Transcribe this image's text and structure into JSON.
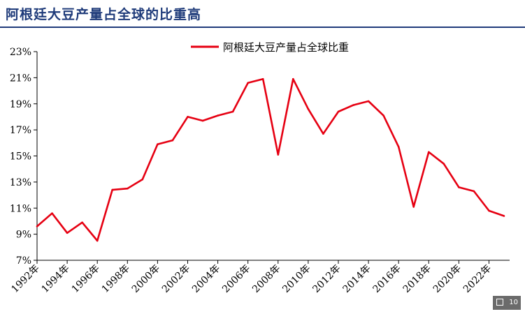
{
  "title": "阿根廷大豆产量占全球的比重高",
  "page_number": "10",
  "colors": {
    "line": "#e60012",
    "title": "#1f3b7a"
  },
  "chart_data": {
    "type": "line",
    "title": "",
    "xlabel": "",
    "ylabel": "",
    "legend_position": "top-center",
    "grid": false,
    "ylim": [
      7,
      23
    ],
    "ytick_labels": [
      "7%",
      "9%",
      "11%",
      "13%",
      "15%",
      "17%",
      "19%",
      "21%",
      "23%"
    ],
    "ytick_values": [
      7,
      9,
      11,
      13,
      15,
      17,
      19,
      21,
      23
    ],
    "x": [
      1992,
      1993,
      1994,
      1995,
      1996,
      1997,
      1998,
      1999,
      2000,
      2001,
      2002,
      2003,
      2004,
      2005,
      2006,
      2007,
      2008,
      2009,
      2010,
      2011,
      2012,
      2013,
      2014,
      2015,
      2016,
      2017,
      2018,
      2019,
      2020,
      2021,
      2022,
      2023
    ],
    "xtick_labels": [
      "1992年",
      "1994年",
      "1996年",
      "1998年",
      "2000年",
      "2002年",
      "2004年",
      "2006年",
      "2008年",
      "2010年",
      "2012年",
      "2014年",
      "2016年",
      "2018年",
      "2020年",
      "2022年"
    ],
    "series": [
      {
        "name": "阿根廷大豆产量占全球比重",
        "values": [
          9.6,
          10.6,
          9.1,
          9.9,
          8.5,
          12.4,
          12.5,
          13.2,
          15.9,
          16.2,
          18.0,
          17.7,
          18.1,
          18.4,
          20.6,
          20.9,
          15.1,
          20.9,
          18.6,
          16.7,
          18.4,
          18.9,
          19.2,
          18.1,
          15.7,
          11.1,
          15.3,
          14.4,
          12.6,
          12.3,
          10.8,
          10.4
        ]
      }
    ]
  }
}
